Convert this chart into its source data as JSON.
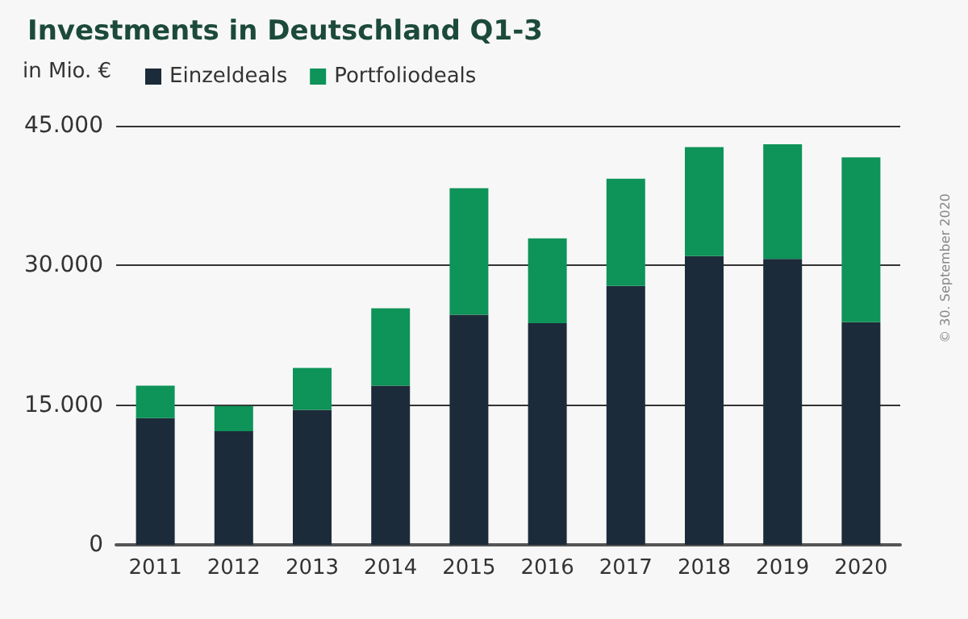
{
  "chart_data": {
    "type": "bar",
    "title": "Investments in Deutschland Q1-3",
    "ylabel": "in Mio. €",
    "categories": [
      "2011",
      "2012",
      "2013",
      "2014",
      "2015",
      "2016",
      "2017",
      "2018",
      "2019",
      "2020"
    ],
    "stacked": true,
    "series": [
      {
        "name": "Einzeldeals",
        "color": "#1c2b39",
        "values": [
          13600,
          12200,
          14500,
          17100,
          24700,
          23800,
          27800,
          31000,
          30700,
          23900
        ]
      },
      {
        "name": "Portfoliodeals",
        "color": "#0e9358",
        "values": [
          3500,
          2700,
          4500,
          8300,
          13600,
          9100,
          11500,
          11700,
          12300,
          17700
        ]
      }
    ],
    "ylim": [
      0,
      45000
    ],
    "yticks": [
      {
        "value": 0,
        "label": "0"
      },
      {
        "value": 15000,
        "label": "15.000"
      },
      {
        "value": 30000,
        "label": "30.000"
      },
      {
        "value": 45000,
        "label": "45.000"
      }
    ],
    "grid": "y",
    "legend": "top left",
    "annotations": [
      "© 30. September 2020"
    ]
  }
}
